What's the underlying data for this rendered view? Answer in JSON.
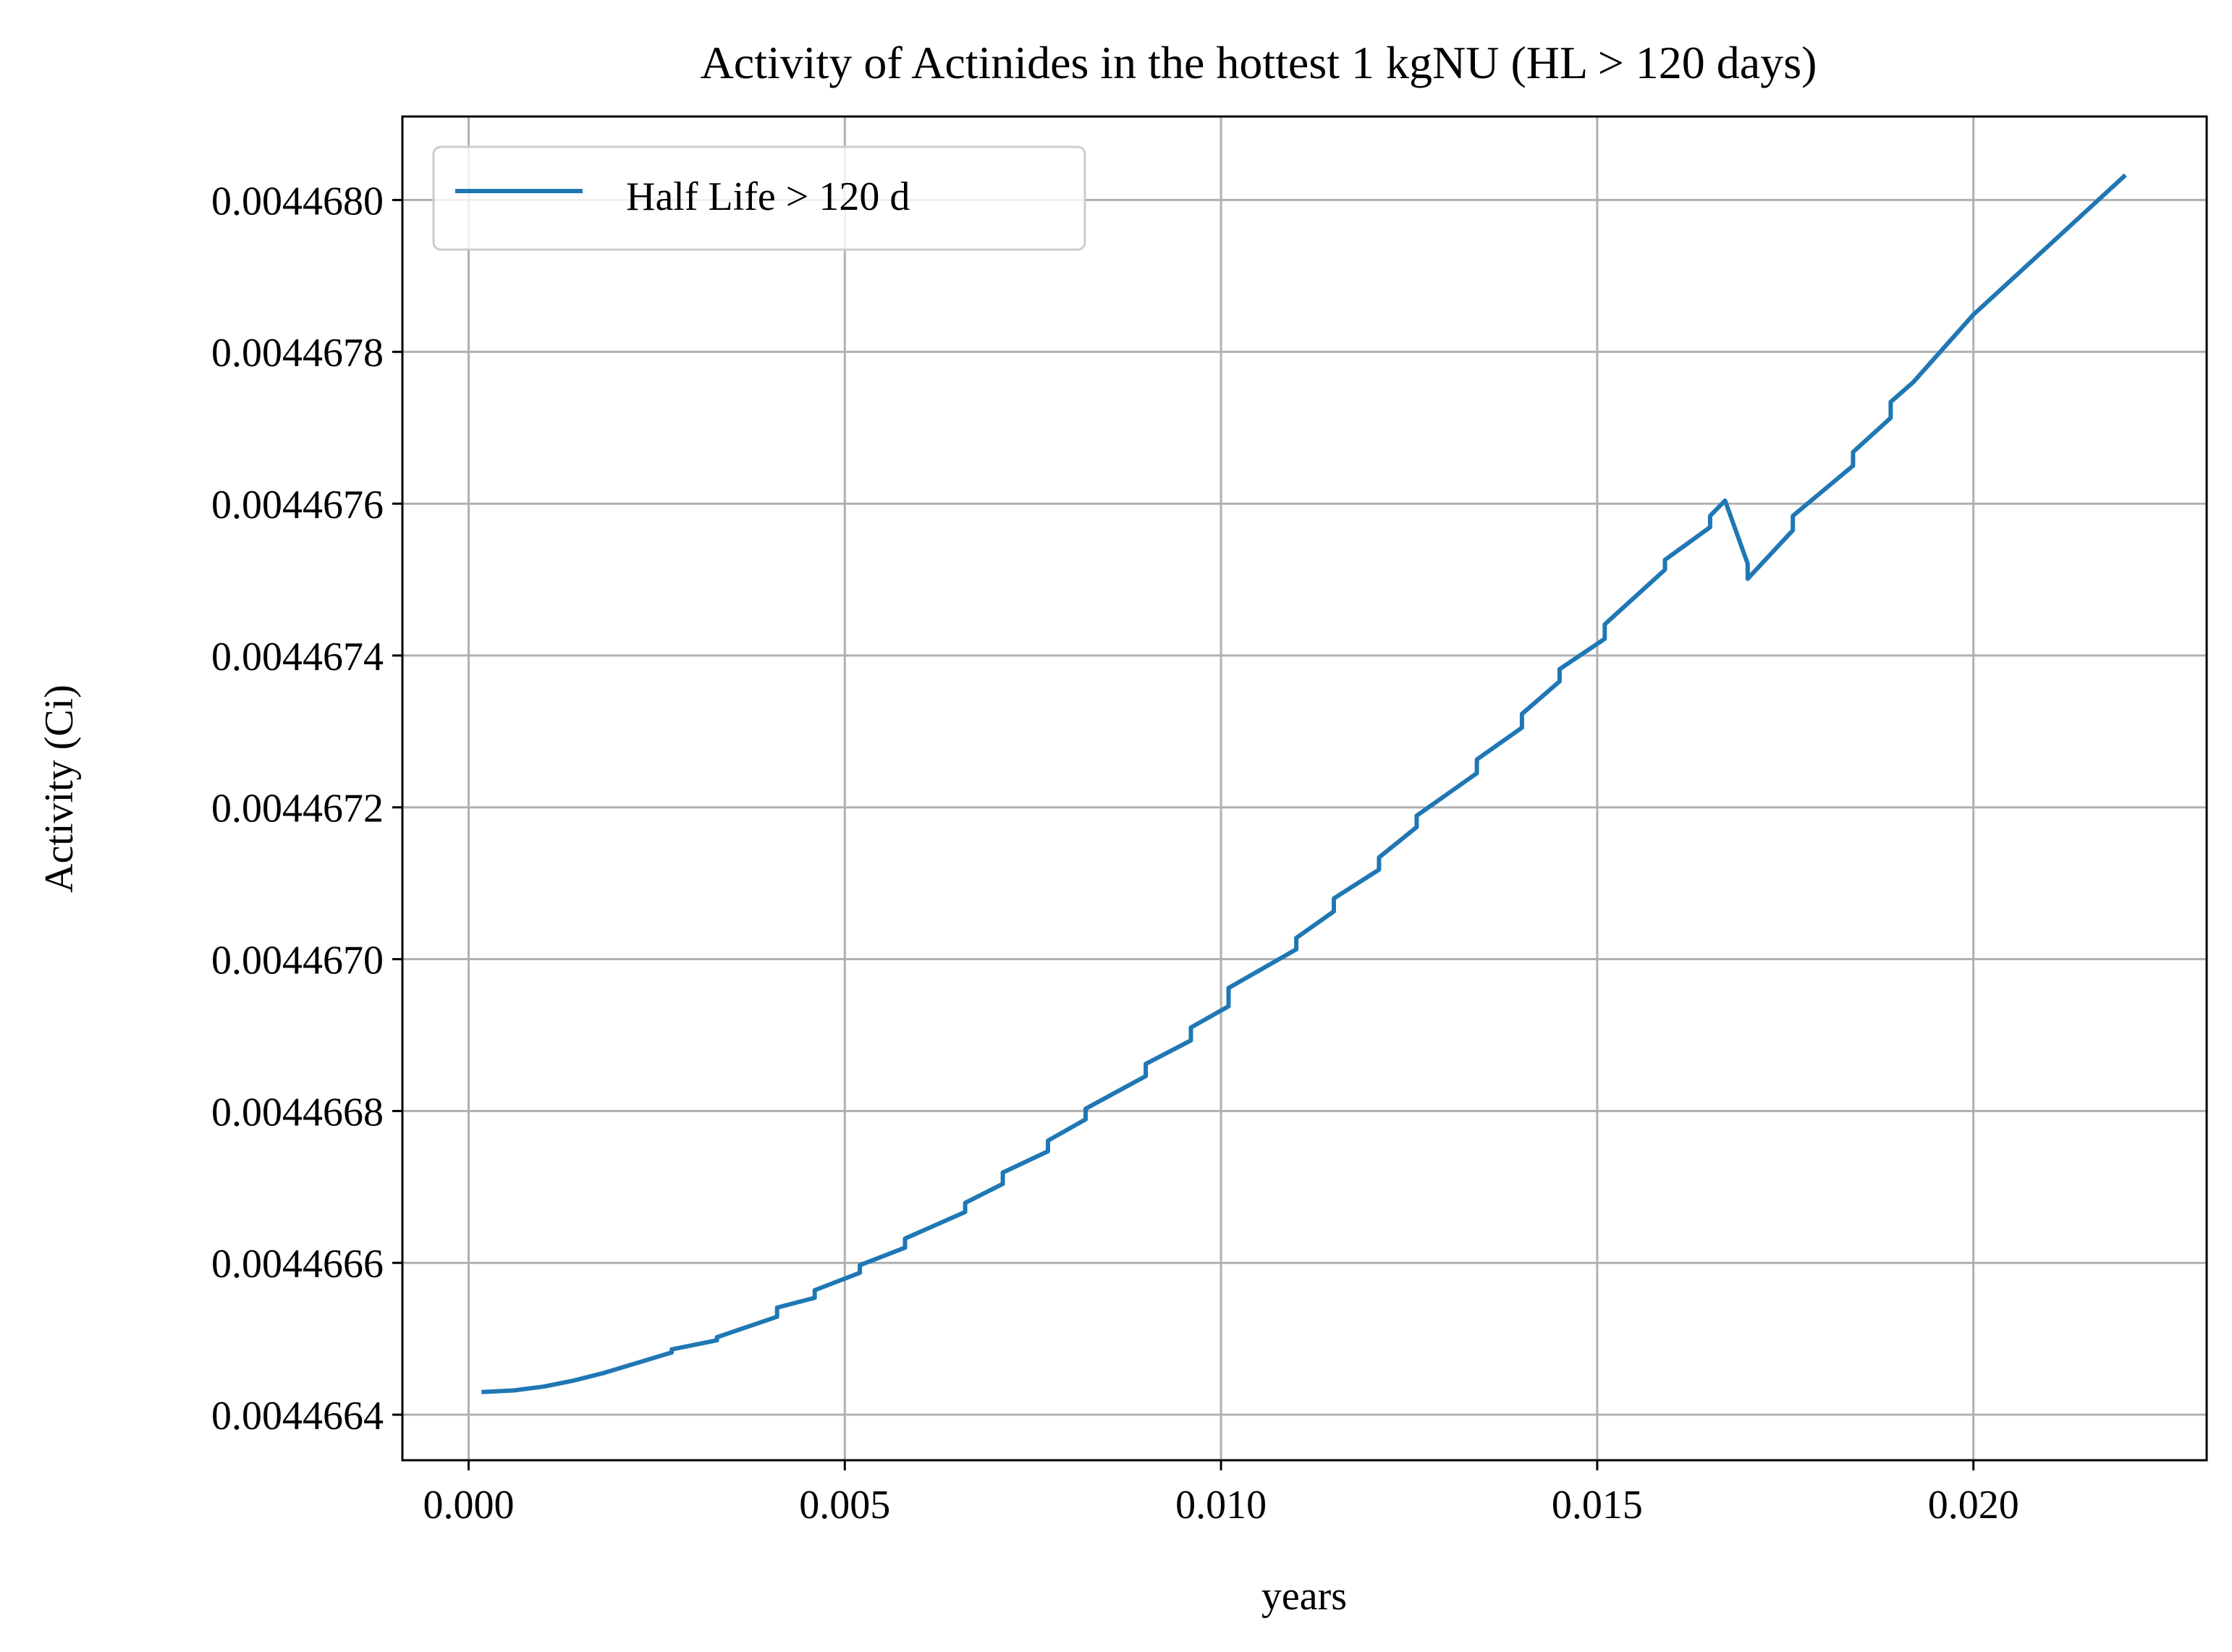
{
  "chart_data": {
    "type": "line",
    "title": "Activity of Actinides in the hottest 1 kgNU (HL > 120 days)",
    "xlabel": "years",
    "ylabel": "Activity (Ci)",
    "xlim": [
      -0.00088,
      0.0231
    ],
    "ylim": [
      0.00446634,
      0.00446811
    ],
    "xticks": [
      0.0,
      0.005,
      0.01,
      0.015,
      0.02
    ],
    "xtick_labels": [
      "0.000",
      "0.005",
      "0.010",
      "0.015",
      "0.020"
    ],
    "yticks": [
      0.0044664,
      0.0044666,
      0.0044668,
      0.004467,
      0.0044672,
      0.0044674,
      0.0044676,
      0.0044678,
      0.004468
    ],
    "ytick_labels": [
      "0.0044664",
      "0.0044666",
      "0.0044668",
      "0.0044670",
      "0.0044672",
      "0.0044674",
      "0.0044676",
      "0.0044678",
      "0.0044680"
    ],
    "grid": true,
    "legend_position": "top-left",
    "series": [
      {
        "name": "Half Life > 120 d",
        "color": "#1f77b4",
        "x": [
          0.0002,
          0.0006,
          0.001,
          0.0014,
          0.0018,
          0.0022,
          0.0027,
          0.0027,
          0.0033,
          0.0033,
          0.0041,
          0.0041,
          0.0046,
          0.0046,
          0.0052,
          0.0052,
          0.0058,
          0.0058,
          0.0066,
          0.0066,
          0.0071,
          0.0071,
          0.0077,
          0.0077,
          0.0082,
          0.0082,
          0.009,
          0.009,
          0.0096,
          0.0096,
          0.0101,
          0.0101,
          0.011,
          0.011,
          0.0115,
          0.0115,
          0.0121,
          0.0121,
          0.0126,
          0.0126,
          0.0134,
          0.0134,
          0.014,
          0.014,
          0.0145,
          0.0145,
          0.0151,
          0.0151,
          0.0159,
          0.0159,
          0.0165,
          0.0165,
          0.0167,
          0.017,
          0.017,
          0.0176,
          0.0176,
          0.0184,
          0.0184,
          0.0189,
          0.0189,
          0.0192,
          0.02,
          0.021,
          0.022
        ],
        "y": [
          0.00446643,
          0.004466432,
          0.004466437,
          0.004466445,
          0.004466455,
          0.004466467,
          0.004466482,
          0.004466486,
          0.004466498,
          0.004466502,
          0.004466529,
          0.004466541,
          0.004466554,
          0.004466564,
          0.004466587,
          0.004466597,
          0.00446662,
          0.004466632,
          0.004466667,
          0.004466679,
          0.004466704,
          0.004466719,
          0.004466747,
          0.004466761,
          0.004466789,
          0.004466803,
          0.004466846,
          0.004466862,
          0.004466893,
          0.00446691,
          0.004466938,
          0.004466962,
          0.004467013,
          0.004467028,
          0.004467063,
          0.00446708,
          0.004467118,
          0.004467134,
          0.004467174,
          0.004467189,
          0.004467245,
          0.004467263,
          0.004467305,
          0.004467323,
          0.004467366,
          0.004467382,
          0.004467422,
          0.004467441,
          0.004467513,
          0.004467526,
          0.004467569,
          0.004467584,
          0.004467604,
          0.004467521,
          0.004467501,
          0.004467565,
          0.004467584,
          0.00446765,
          0.004467668,
          0.004467713,
          0.004467734,
          0.00446776,
          0.004467849,
          0.00446794,
          0.004468031
        ]
      }
    ]
  }
}
